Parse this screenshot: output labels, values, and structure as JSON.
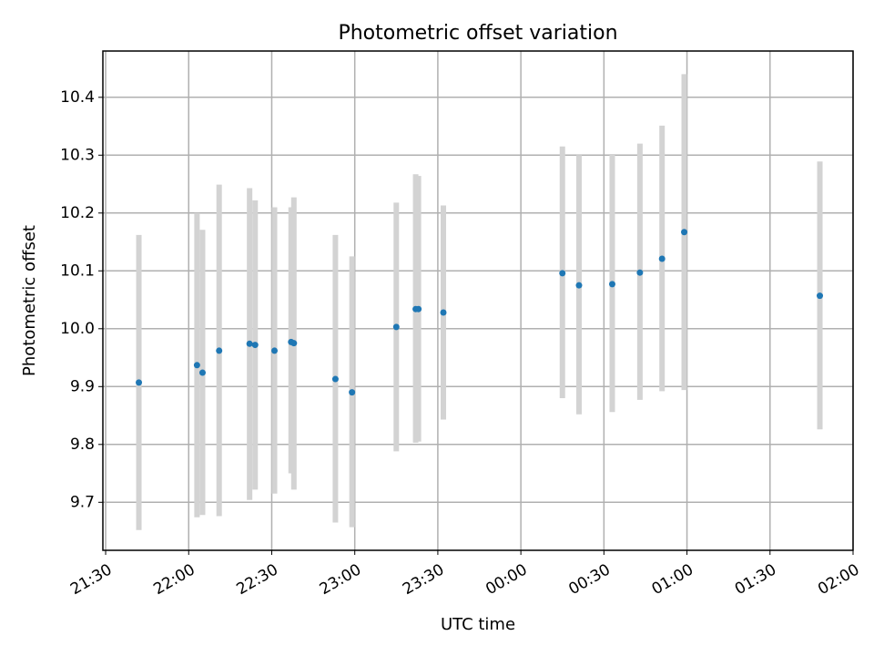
{
  "chart_data": {
    "type": "scatter",
    "title": "Photometric offset variation",
    "xlabel": "UTC time",
    "ylabel": "Photometric offset",
    "x_is_time": true,
    "xlim": [
      "21:29",
      "02:00"
    ],
    "ylim": [
      9.617,
      10.48
    ],
    "grid": true,
    "x_ticks": [
      "21:30",
      "22:00",
      "22:30",
      "23:00",
      "23:30",
      "00:00",
      "00:30",
      "01:00",
      "01:30",
      "02:00"
    ],
    "y_ticks": [
      "9.7",
      "9.8",
      "9.9",
      "10.0",
      "10.1",
      "10.2",
      "10.3",
      "10.4"
    ],
    "colors": {
      "marker": "#1f77b4",
      "errorbar": "#d3d3d3",
      "grid": "#b0b0b0"
    },
    "points": [
      {
        "time": "21:42",
        "y": 9.907,
        "lo": 9.652,
        "hi": 10.162
      },
      {
        "time": "22:03",
        "y": 9.937,
        "lo": 9.674,
        "hi": 10.2
      },
      {
        "time": "22:05",
        "y": 9.924,
        "lo": 9.678,
        "hi": 10.171
      },
      {
        "time": "22:11",
        "y": 9.962,
        "lo": 9.676,
        "hi": 10.249
      },
      {
        "time": "22:22",
        "y": 9.974,
        "lo": 9.704,
        "hi": 10.243
      },
      {
        "time": "22:24",
        "y": 9.972,
        "lo": 9.722,
        "hi": 10.222
      },
      {
        "time": "22:31",
        "y": 9.962,
        "lo": 9.715,
        "hi": 10.21
      },
      {
        "time": "22:37",
        "y": 9.977,
        "lo": 9.75,
        "hi": 10.21
      },
      {
        "time": "22:38",
        "y": 9.975,
        "lo": 9.722,
        "hi": 10.227
      },
      {
        "time": "22:53",
        "y": 9.913,
        "lo": 9.665,
        "hi": 10.162
      },
      {
        "time": "22:59",
        "y": 9.89,
        "lo": 9.657,
        "hi": 10.125
      },
      {
        "time": "23:15",
        "y": 10.003,
        "lo": 9.788,
        "hi": 10.218
      },
      {
        "time": "23:22",
        "y": 10.034,
        "lo": 9.803,
        "hi": 10.267
      },
      {
        "time": "23:23",
        "y": 10.034,
        "lo": 9.805,
        "hi": 10.264
      },
      {
        "time": "23:32",
        "y": 10.028,
        "lo": 9.843,
        "hi": 10.213
      },
      {
        "time": "00:15",
        "y": 10.096,
        "lo": 9.88,
        "hi": 10.315
      },
      {
        "time": "00:21",
        "y": 10.075,
        "lo": 9.852,
        "hi": 10.3
      },
      {
        "time": "00:33",
        "y": 10.077,
        "lo": 9.856,
        "hi": 10.302
      },
      {
        "time": "00:43",
        "y": 10.097,
        "lo": 9.877,
        "hi": 10.32
      },
      {
        "time": "00:51",
        "y": 10.121,
        "lo": 9.892,
        "hi": 10.351
      },
      {
        "time": "00:59",
        "y": 10.167,
        "lo": 9.894,
        "hi": 10.44
      },
      {
        "time": "01:48",
        "y": 10.057,
        "lo": 9.826,
        "hi": 10.289
      }
    ]
  }
}
